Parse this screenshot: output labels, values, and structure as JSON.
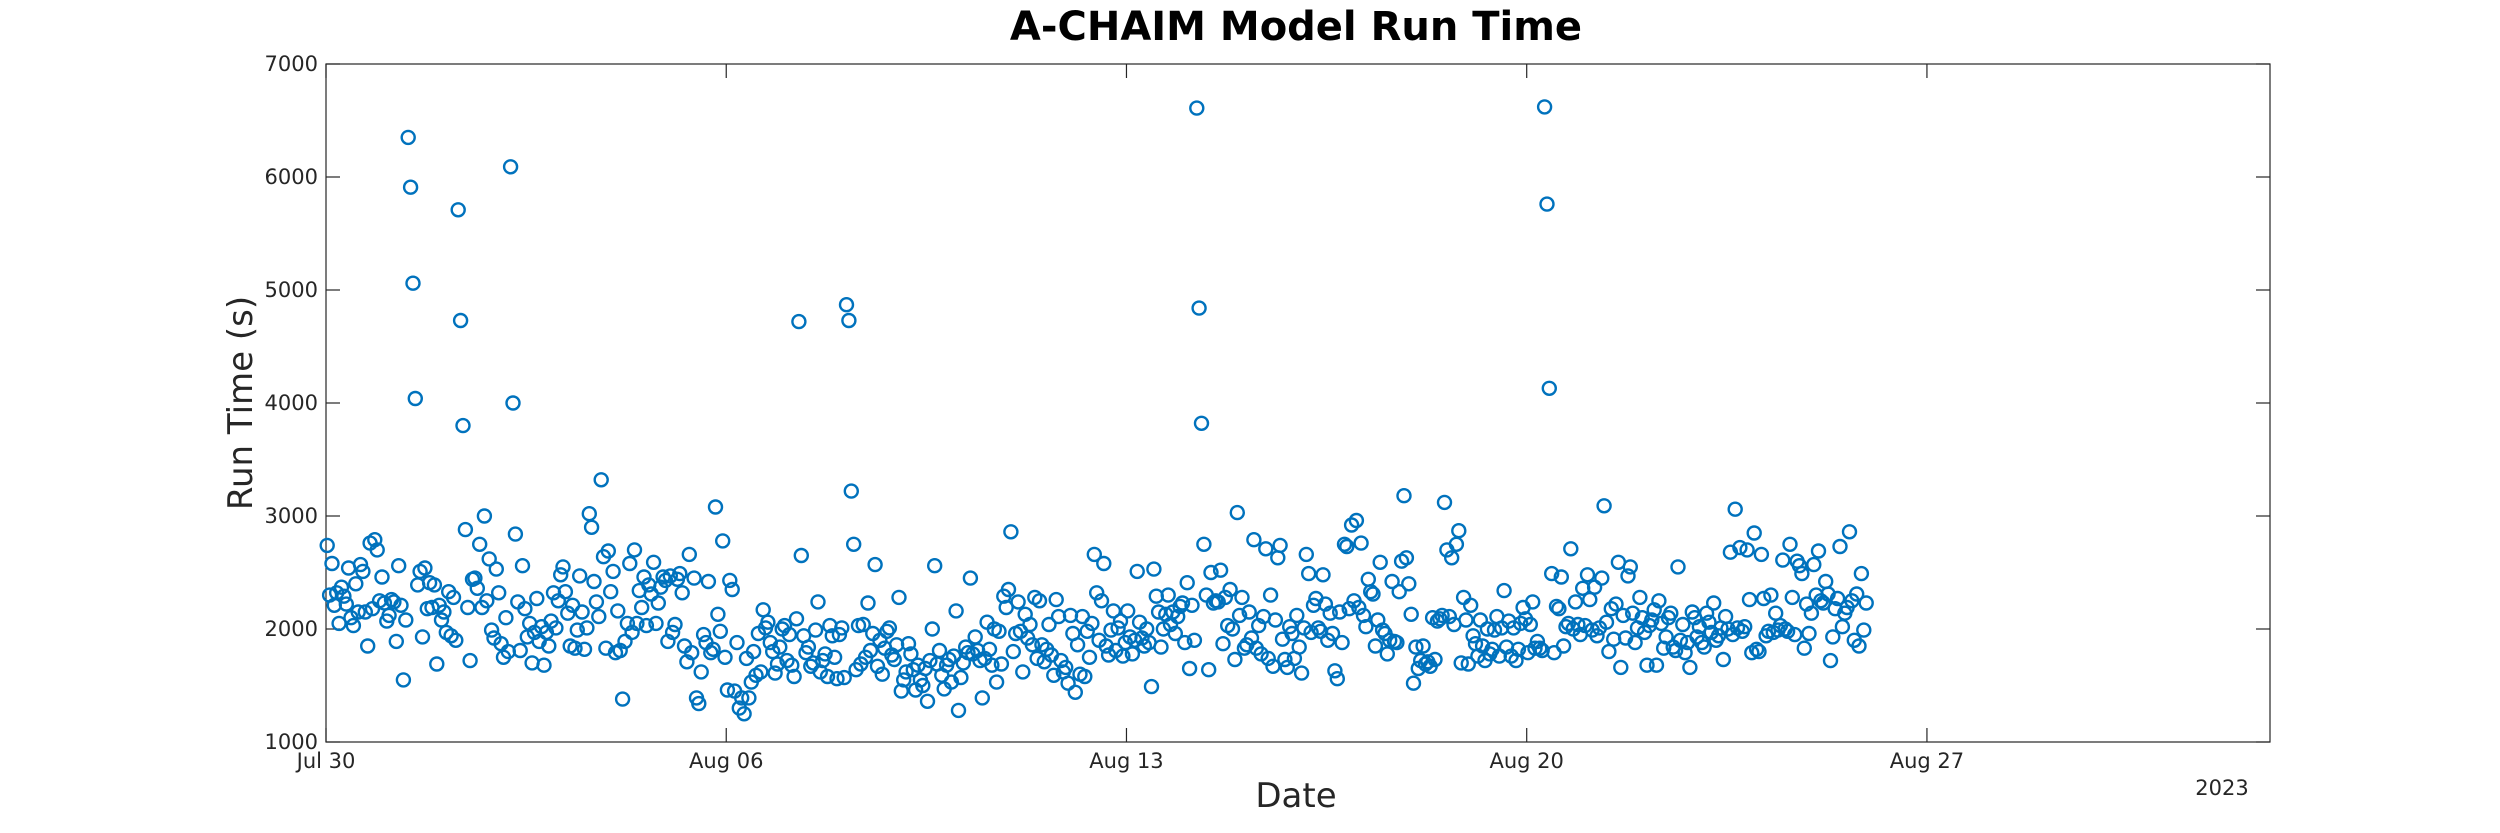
{
  "chart_data": {
    "type": "scatter",
    "title": "A-CHAIM Model Run Time",
    "xlabel": "Date",
    "ylabel": "Run Time (s)",
    "x_type": "date",
    "x_range": [
      "2023-07-30",
      "2023-09-02"
    ],
    "ylim": [
      1000,
      7000
    ],
    "y_ticks": [
      1000,
      2000,
      3000,
      4000,
      5000,
      6000,
      7000
    ],
    "x_ticks": [
      {
        "date": "2023-07-30",
        "label": "Jul 30"
      },
      {
        "date": "2023-08-06",
        "label": "Aug 06"
      },
      {
        "date": "2023-08-13",
        "label": "Aug 13"
      },
      {
        "date": "2023-08-20",
        "label": "Aug 20"
      },
      {
        "date": "2023-08-27",
        "label": "Aug 27"
      }
    ],
    "x_secondary_label": "2023",
    "grid": false,
    "marker": "open-circle",
    "color": "#0072BD",
    "start_date": "2023-07-30",
    "points_per_day": 24,
    "series": [
      {
        "name": "Run Time",
        "y": [
          2740,
          2300,
          2580,
          2210,
          2320,
          2050,
          2370,
          2290,
          2220,
          2540,
          2100,
          2030,
          2400,
          2150,
          2570,
          2510,
          2150,
          1850,
          2760,
          2180,
          2790,
          2700,
          2250,
          2460,
          2230,
          2070,
          2120,
          2260,
          2240,
          1890,
          2560,
          2210,
          1550,
          2080,
          6350,
          5910,
          5060,
          4040,
          2390,
          2510,
          1930,
          2540,
          2180,
          2410,
          2190,
          2390,
          1690,
          2210,
          2080,
          2150,
          1970,
          2330,
          1940,
          2280,
          1900,
          5710,
          4730,
          3800,
          2880,
          2190,
          1720,
          2440,
          2450,
          2360,
          2750,
          2190,
          3000,
          2250,
          2620,
          1990,
          1920,
          2530,
          2320,
          1870,
          1750,
          2100,
          1800,
          6090,
          4000,
          2840,
          2240,
          1810,
          2560,
          2180,
          1930,
          2050,
          1700,
          1970,
          2270,
          1890,
          2020,
          1680,
          1970,
          1850,
          2070,
          2320,
          2010,
          2250,
          2480,
          2550,
          2330,
          2140,
          1850,
          2210,
          1830,
          1990,
          2470,
          2150,
          1820,
          2010,
          3020,
          2900,
          2420,
          2240,
          2110,
          3320,
          2640,
          1830,
          2690,
          2330,
          2510,
          1790,
          2160,
          1810,
          1380,
          1890,
          2050,
          2580,
          1970,
          2700,
          2050,
          2340,
          2190,
          2460,
          2030,
          2390,
          2310,
          2590,
          2050,
          2230,
          2370,
          2460,
          2430,
          1890,
          2470,
          1970,
          2040,
          2440,
          2490,
          2320,
          1850,
          1710,
          2660,
          1790,
          2450,
          1390,
          1340,
          1620,
          1950,
          1880,
          2420,
          1790,
          1820,
          3080,
          2130,
          1980,
          2780,
          1750,
          1460,
          2430,
          2350,
          1450,
          1880,
          1300,
          1390,
          1250,
          1740,
          1390,
          1530,
          1800,
          1590,
          1960,
          1620,
          2170,
          2010,
          2060,
          1880,
          1800,
          1610,
          1690,
          1840,
          2000,
          2030,
          1720,
          1950,
          1680,
          1580,
          2090,
          4720,
          2650,
          1940,
          1790,
          1840,
          1670,
          1700,
          1990,
          2240,
          1620,
          1720,
          1780,
          1580,
          2030,
          1940,
          1750,
          1560,
          1950,
          2010,
          1570,
          4870,
          4730,
          3220,
          2750,
          1640,
          2030,
          1690,
          2040,
          1750,
          2230,
          1810,
          1960,
          2570,
          1670,
          1900,
          1600,
          1830,
          1980,
          2010,
          1770,
          1730,
          1860,
          2280,
          1450,
          1550,
          1620,
          1870,
          1780,
          1640,
          1460,
          1680,
          1550,
          1500,
          1650,
          1360,
          1720,
          2000,
          2560,
          1690,
          1810,
          1590,
          1470,
          1680,
          1730,
          1530,
          1760,
          2160,
          1280,
          1570,
          1700,
          1840,
          1790,
          2450,
          1780,
          1930,
          1810,
          1720,
          1390,
          1740,
          2060,
          1820,
          1680,
          2000,
          1530,
          1980,
          1690,
          2290,
          2190,
          2350,
          2860,
          1800,
          1960,
          2240,
          1980,
          1620,
          2130,
          1920,
          2040,
          1860,
          2280,
          1740,
          2250,
          1860,
          1710,
          1820,
          2040,
          1770,
          1590,
          2260,
          2110,
          1720,
          1620,
          1660,
          1520,
          2120,
          1960,
          1440,
          1860,
          1600,
          2110,
          1580,
          1980,
          1750,
          2050,
          2660,
          2320,
          1900,
          2250,
          2580,
          1850,
          1770,
          1990,
          2160,
          1810,
          2010,
          2070,
          1760,
          1880,
          2160,
          1930,
          1780,
          1900,
          2510,
          2060,
          1920,
          1850,
          2000,
          1880,
          1490,
          2530,
          2290,
          2150,
          1840,
          2000,
          2130,
          2300,
          2040,
          2150,
          1960,
          2110,
          2200,
          2230,
          1880,
          2410,
          1650,
          2210,
          1900,
          6610,
          4840,
          3820,
          2750,
          2300,
          1640,
          2500,
          2230,
          2250,
          2240,
          2520,
          1870,
          2280,
          2030,
          2350,
          2000,
          1730,
          3030,
          2120,
          2280,
          1830,
          1860,
          2150,
          1920,
          2790,
          1830,
          2030,
          1780,
          2110,
          2710,
          1740,
          2300,
          1670,
          2080,
          2630,
          2740,
          1910,
          1730,
          1660,
          2020,
          1960,
          1740,
          2120,
          1840,
          1610,
          2010,
          2660,
          2490,
          1970,
          2210,
          2270,
          2010,
          1980,
          2480,
          2220,
          1900,
          2140,
          1960,
          1630,
          1560,
          2150,
          1880,
          2750,
          2730,
          2180,
          2920,
          2250,
          2960,
          2190,
          2760,
          2120,
          2020,
          2440,
          2330,
          2310,
          1850,
          2080,
          2590,
          1990,
          1960,
          1780,
          1900,
          2420,
          1890,
          1880,
          2330,
          2600,
          3180,
          2630,
          2400,
          2130,
          1520,
          1840,
          1650,
          1720,
          1850,
          1690,
          1710,
          1670,
          2100,
          1730,
          2070,
          2090,
          2120,
          3120,
          2700,
          2110,
          2630,
          2040,
          2750,
          2870,
          1700,
          2280,
          2080,
          1690,
          2210,
          1940,
          1870,
          1760,
          2080,
          1850,
          1720,
          2000,
          1780,
          1820,
          1990,
          2110,
          1760,
          2010,
          2340,
          1840,
          2070,
          1760,
          2010,
          1720,
          1820,
          2050,
          2190,
          2090,
          1790,
          2040,
          2240,
          1830,
          1890,
          1830,
          1810,
          6620,
          5760,
          4130,
          2490,
          1790,
          2200,
          2180,
          2460,
          1850,
          2020,
          2050,
          2710,
          2000,
          2240,
          2040,
          1950,
          2360,
          2030,
          2480,
          2260,
          1990,
          2370,
          1940,
          2010,
          2450,
          3090,
          2060,
          1800,
          2180,
          1910,
          2220,
          2590,
          1660,
          2120,
          1920,
          2470,
          2550,
          2140,
          1880,
          2010,
          2280,
          2100,
          1970,
          1680,
          2030,
          2080,
          2170,
          1680,
          2250,
          2050,
          1830,
          1930,
          2100,
          2140,
          1840,
          1810,
          2550,
          1900,
          2040,
          1790,
          1880,
          1660,
          2150,
          2100,
          1930,
          2020,
          1880,
          1840,
          2140,
          2060,
          1970,
          2230,
          1900,
          1940,
          2010,
          1730,
          2110,
          2000,
          2680,
          1950,
          3060,
          2010,
          2720,
          1980,
          2020,
          2700,
          2260,
          1790,
          2850,
          1820,
          1800,
          2660,
          2270,
          1940,
          1980,
          2300,
          1970,
          2140,
          1990,
          2030,
          2610,
          2000,
          1980,
          2750,
          2280,
          1950,
          2600,
          2560,
          2490,
          1830,
          2220,
          1960,
          2140,
          2570,
          2300,
          2690,
          2250,
          2230,
          2420,
          2310,
          1720,
          1930,
          2180,
          2270,
          2730,
          2020,
          2140,
          2190,
          2860,
          2250,
          1900,
          2310,
          1850,
          2490,
          1990,
          2230
        ]
      }
    ]
  }
}
